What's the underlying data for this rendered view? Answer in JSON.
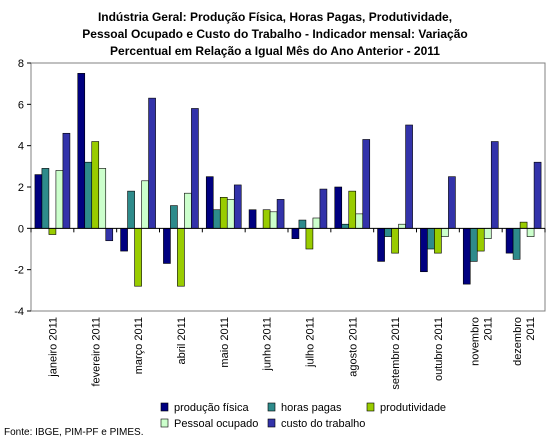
{
  "chart_data": {
    "type": "bar",
    "title_lines": [
      "Indústria Geral: Produção Física, Horas Pagas, Produtividade,",
      "Pessoal Ocupado e Custo do Trabalho - Indicador mensal: Variação",
      "Percentual em Relação a Igual Mês do Ano Anterior - 2011"
    ],
    "categories": [
      "janeiro 2011",
      "fevereiro 2011",
      "março 2011",
      "abril 2011",
      "maio 2011",
      "junho 2011",
      "julho 2011",
      "agosto 2011",
      "setembro 2011",
      "outubro 2011",
      "novembro 2011",
      "dezembro 2011"
    ],
    "category_label_lines": [
      [
        "janeiro 2011"
      ],
      [
        "fevereiro 2011"
      ],
      [
        "março 2011"
      ],
      [
        "abril 2011"
      ],
      [
        "maio 2011"
      ],
      [
        "junho 2011"
      ],
      [
        "julho 2011"
      ],
      [
        "agosto 2011"
      ],
      [
        "setembro 2011"
      ],
      [
        "outubro 2011"
      ],
      [
        "novembro",
        "2011"
      ],
      [
        "dezembro",
        "2011"
      ]
    ],
    "ylim": [
      -4,
      8
    ],
    "yticks": [
      -4,
      -2,
      0,
      2,
      4,
      6,
      8
    ],
    "grid": false,
    "legend_position": "bottom",
    "series": [
      {
        "name": "produção física",
        "color": "#000080",
        "values": [
          2.6,
          7.5,
          -1.1,
          -1.7,
          2.5,
          0.9,
          -0.5,
          2.0,
          -1.6,
          -2.1,
          -2.7,
          -1.2
        ]
      },
      {
        "name": "horas pagas",
        "color": "#2E8B8B",
        "values": [
          2.9,
          3.2,
          1.8,
          1.1,
          0.9,
          0.0,
          0.4,
          0.2,
          -0.4,
          -1.0,
          -1.6,
          -1.5
        ]
      },
      {
        "name": "produtividade",
        "color": "#99CC00",
        "values": [
          -0.3,
          4.2,
          -2.8,
          -2.8,
          1.5,
          0.9,
          -1.0,
          1.8,
          -1.2,
          -1.2,
          -1.1,
          0.3
        ]
      },
      {
        "name": "Pessoal ocupado",
        "color": "#CCFFCC",
        "values": [
          2.8,
          2.9,
          2.3,
          1.7,
          1.4,
          0.8,
          0.5,
          0.7,
          0.2,
          -0.4,
          -0.5,
          -0.4
        ]
      },
      {
        "name": "custo do trabalho",
        "color": "#3333AA",
        "values": [
          4.6,
          -0.6,
          6.3,
          5.8,
          2.1,
          1.4,
          1.9,
          4.3,
          5.0,
          2.5,
          4.2,
          3.2
        ]
      }
    ],
    "source": "Fonte: IBGE, PIM-PF e PIMES."
  }
}
